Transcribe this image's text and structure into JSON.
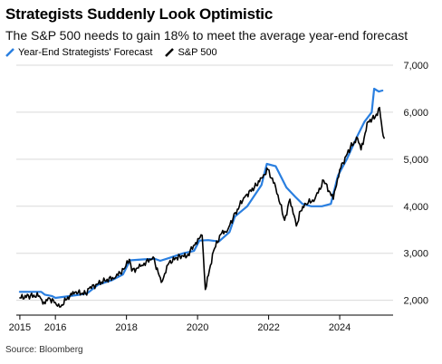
{
  "title": "Strategists Suddenly Look Optimistic",
  "subtitle": "The S&P 500 needs to gain 18% to meet the average year-end forecast",
  "source": "Source: Bloomberg",
  "colors": {
    "forecast": "#2a7fe0",
    "sp500": "#000000",
    "grid": "#d9d9d9"
  },
  "chart_data": {
    "type": "line",
    "x_type": "year",
    "xlim": [
      2014.9,
      2025.4
    ],
    "ylim": [
      1800,
      7000
    ],
    "x_ticks": [
      2015,
      2016,
      2018,
      2020,
      2022,
      2024
    ],
    "x_tick_labels": [
      "2015",
      "2016",
      "2018",
      "2020",
      "2022",
      "2024"
    ],
    "y_ticks": [
      2000,
      3000,
      4000,
      5000,
      6000,
      7000
    ],
    "y_tick_labels": [
      "2,000",
      "3,000",
      "4,000",
      "5,000",
      "6,000",
      "7,000"
    ],
    "grid": "horizontal",
    "legend_position": "top-left",
    "series": [
      {
        "name": "Year-End Strategists' Forecast",
        "color": "#2a7fe0",
        "points": [
          [
            2015.0,
            2180
          ],
          [
            2015.6,
            2180
          ],
          [
            2015.7,
            2120
          ],
          [
            2015.9,
            2090
          ],
          [
            2016.0,
            2050
          ],
          [
            2016.3,
            2080
          ],
          [
            2016.7,
            2120
          ],
          [
            2016.9,
            2150
          ],
          [
            2017.2,
            2330
          ],
          [
            2017.6,
            2430
          ],
          [
            2017.9,
            2550
          ],
          [
            2018.1,
            2850
          ],
          [
            2018.5,
            2870
          ],
          [
            2018.8,
            2880
          ],
          [
            2018.95,
            2840
          ],
          [
            2019.2,
            2900
          ],
          [
            2019.6,
            3000
          ],
          [
            2019.9,
            3050
          ],
          [
            2020.05,
            3270
          ],
          [
            2020.3,
            3280
          ],
          [
            2020.6,
            3250
          ],
          [
            2020.9,
            3450
          ],
          [
            2021.05,
            3780
          ],
          [
            2021.4,
            4000
          ],
          [
            2021.8,
            4450
          ],
          [
            2021.95,
            4900
          ],
          [
            2022.2,
            4850
          ],
          [
            2022.5,
            4400
          ],
          [
            2022.75,
            4200
          ],
          [
            2022.95,
            4050
          ],
          [
            2023.2,
            4000
          ],
          [
            2023.5,
            4000
          ],
          [
            2023.75,
            4050
          ],
          [
            2023.95,
            4650
          ],
          [
            2024.2,
            5000
          ],
          [
            2024.5,
            5500
          ],
          [
            2024.7,
            5800
          ],
          [
            2024.9,
            6000
          ],
          [
            2024.97,
            6500
          ],
          [
            2025.1,
            6440
          ],
          [
            2025.2,
            6460
          ]
        ]
      },
      {
        "name": "S&P 500",
        "color": "#000000",
        "points": [
          [
            2015.0,
            2050
          ],
          [
            2015.3,
            2100
          ],
          [
            2015.55,
            2090
          ],
          [
            2015.65,
            1920
          ],
          [
            2015.8,
            2050
          ],
          [
            2016.0,
            1950
          ],
          [
            2016.15,
            1860
          ],
          [
            2016.35,
            2070
          ],
          [
            2016.55,
            2170
          ],
          [
            2016.85,
            2140
          ],
          [
            2016.95,
            2250
          ],
          [
            2017.3,
            2390
          ],
          [
            2017.7,
            2500
          ],
          [
            2017.95,
            2680
          ],
          [
            2018.08,
            2870
          ],
          [
            2018.15,
            2620
          ],
          [
            2018.4,
            2720
          ],
          [
            2018.75,
            2920
          ],
          [
            2018.98,
            2380
          ],
          [
            2019.2,
            2800
          ],
          [
            2019.5,
            2950
          ],
          [
            2019.7,
            2930
          ],
          [
            2019.95,
            3230
          ],
          [
            2020.13,
            3380
          ],
          [
            2020.22,
            2230
          ],
          [
            2020.45,
            3050
          ],
          [
            2020.65,
            3400
          ],
          [
            2020.85,
            3500
          ],
          [
            2021.0,
            3750
          ],
          [
            2021.3,
            4180
          ],
          [
            2021.6,
            4400
          ],
          [
            2021.8,
            4600
          ],
          [
            2021.98,
            4780
          ],
          [
            2022.2,
            4400
          ],
          [
            2022.45,
            3700
          ],
          [
            2022.6,
            4150
          ],
          [
            2022.78,
            3580
          ],
          [
            2022.9,
            3900
          ],
          [
            2023.05,
            4050
          ],
          [
            2023.3,
            4150
          ],
          [
            2023.55,
            4550
          ],
          [
            2023.82,
            4150
          ],
          [
            2024.0,
            4780
          ],
          [
            2024.3,
            5250
          ],
          [
            2024.5,
            5450
          ],
          [
            2024.6,
            5200
          ],
          [
            2024.8,
            5800
          ],
          [
            2025.0,
            5900
          ],
          [
            2025.12,
            6100
          ],
          [
            2025.2,
            5600
          ],
          [
            2025.25,
            5450
          ]
        ]
      }
    ]
  }
}
